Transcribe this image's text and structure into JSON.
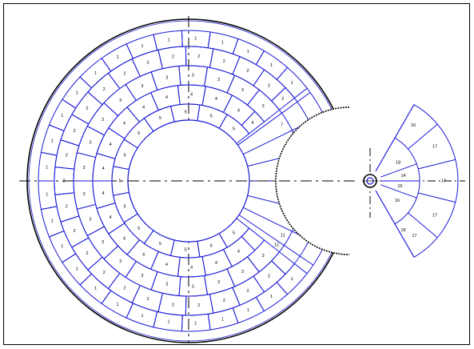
{
  "colors": {
    "frame": "#000000",
    "blocks": "#1a1ad6",
    "shell": "#000000",
    "centerlines": "#000000",
    "text": "#000000"
  },
  "main_ring": {
    "rows": [
      {
        "label": "1",
        "count": 26
      },
      {
        "label": "2",
        "count": 24
      },
      {
        "label": "3",
        "count": 20
      },
      {
        "label": "4",
        "count": 17
      },
      {
        "label": "5",
        "count": 13
      }
    ],
    "cutout_labels": [
      "7",
      "6",
      "8",
      "9",
      "10",
      "11",
      "12",
      "13"
    ]
  },
  "fan": {
    "labels": [
      "16",
      "18",
      "17",
      "17",
      "17",
      "17",
      "14",
      "15",
      "16",
      "18"
    ]
  }
}
